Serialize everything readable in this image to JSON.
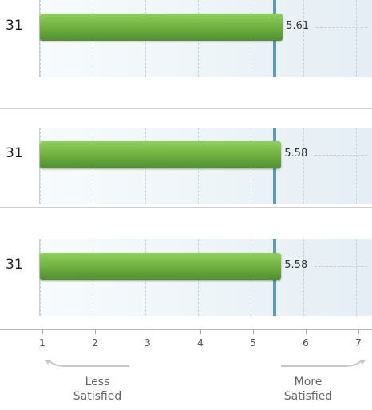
{
  "chart_data": {
    "type": "bar",
    "x_range": [
      1,
      7
    ],
    "x_ticks": [
      "1",
      "2",
      "3",
      "4",
      "5",
      "6",
      "7"
    ],
    "reference_mean": 5.45,
    "rows": [
      {
        "count": "31",
        "value": 5.61,
        "label": "5.61"
      },
      {
        "count": "31",
        "value": 5.58,
        "label": "5.58"
      },
      {
        "count": "31",
        "value": 5.58,
        "label": "5.58"
      }
    ],
    "scale_hints": {
      "left": "Less\nSatisfied",
      "right": "More\nSatisfied"
    }
  },
  "colors": {
    "bar_top": "#8fd15d",
    "bar_mid": "#74b343",
    "bar_bottom": "#4f8f2f",
    "mean_line": "#5b9bc2",
    "plot_bg_left": "#f7fbfd",
    "plot_bg_right": "#e5eef4"
  }
}
